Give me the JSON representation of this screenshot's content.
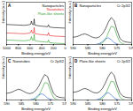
{
  "chart_data": [
    {
      "type": "line",
      "title": "A",
      "x_label": "Binding energy/eV",
      "y_label": "Intensity (a.u.)",
      "x": [
        1000,
        900,
        800,
        700,
        620,
        590,
        577,
        560,
        540,
        530,
        520,
        450,
        350,
        300,
        285,
        270,
        200,
        100,
        0
      ],
      "series": [
        {
          "name": "Nanoparticles",
          "color": "#000000",
          "values": [
            7.1,
            7.0,
            6.9,
            6.8,
            7.0,
            7.2,
            8.3,
            7.1,
            7.0,
            9.1,
            6.9,
            6.6,
            6.4,
            6.3,
            7.0,
            6.2,
            6.0,
            5.9,
            5.8
          ]
        },
        {
          "name": "Nanotubes",
          "color": "#e41a1c",
          "values": [
            4.1,
            4.0,
            3.9,
            3.8,
            4.0,
            4.2,
            5.1,
            4.1,
            4.0,
            6.0,
            3.9,
            3.6,
            3.4,
            3.3,
            4.2,
            3.2,
            3.0,
            2.9,
            2.8
          ]
        },
        {
          "name": "Plate-like sheets",
          "color": "#2ca02c",
          "values": [
            1.6,
            1.5,
            1.4,
            1.3,
            1.5,
            1.7,
            2.8,
            1.6,
            1.5,
            3.6,
            1.4,
            1.1,
            0.9,
            0.8,
            1.6,
            0.7,
            0.5,
            0.4,
            0.3
          ]
        }
      ],
      "xlim": [
        1000,
        0
      ],
      "xticks": [
        1000,
        800,
        600,
        400,
        200,
        0
      ],
      "ylim": [
        0,
        15
      ],
      "tick_labels": "x",
      "legend": "top-right"
    },
    {
      "type": "line",
      "title": "B",
      "x_label": "Binding energy/eV",
      "y_label": "Intensity (a.u.)",
      "annotations": [
        "Nanoparticles",
        "Cr 2p3/2"
      ],
      "x": [
        590,
        589,
        588,
        587,
        586,
        585,
        584,
        583,
        582,
        581,
        580,
        579,
        578,
        577,
        576,
        575,
        574,
        573,
        572,
        571,
        570
      ],
      "series": [
        {
          "color": "#000000",
          "values": [
            0.38,
            0.4,
            0.45,
            0.52,
            0.55,
            0.5,
            0.42,
            0.36,
            0.34,
            0.4,
            0.55,
            0.8,
            1.15,
            1.4,
            1.25,
            0.72,
            0.32,
            0.18,
            0.13,
            0.11,
            0.1
          ]
        },
        {
          "color": "#2ca02c",
          "values": [
            0,
            0,
            0,
            0,
            0,
            0,
            0,
            0,
            0,
            0.02,
            0.08,
            0.25,
            0.6,
            0.95,
            0.9,
            0.45,
            0.12,
            0.03,
            0,
            0,
            0
          ]
        },
        {
          "color": "#1f5fd6",
          "values": [
            0,
            0,
            0,
            0,
            0,
            0,
            0,
            0,
            0.01,
            0.05,
            0.15,
            0.3,
            0.35,
            0.25,
            0.1,
            0.03,
            0,
            0,
            0,
            0,
            0
          ]
        }
      ],
      "xlim": [
        590,
        570
      ],
      "xticks": [
        590,
        585,
        580,
        575,
        570
      ],
      "ylim": [
        0,
        2.2
      ],
      "tick_labels": "x"
    },
    {
      "type": "line",
      "title": "C",
      "x_label": "Binding energy/eV",
      "y_label": "Intensity (a.u.)",
      "annotations": [
        "Nanotubes",
        "Cr 2p3/2"
      ],
      "x": [
        590,
        589,
        588,
        587,
        586,
        585,
        584,
        583,
        582,
        581,
        580,
        579,
        578,
        577,
        576,
        575,
        574,
        573,
        572,
        571,
        570
      ],
      "series": [
        {
          "color": "#000000",
          "values": [
            0.35,
            0.37,
            0.42,
            0.5,
            0.56,
            0.52,
            0.43,
            0.36,
            0.33,
            0.38,
            0.5,
            0.72,
            1.05,
            1.32,
            1.22,
            0.75,
            0.35,
            0.2,
            0.14,
            0.12,
            0.11
          ]
        },
        {
          "color": "#2ca02c",
          "values": [
            0,
            0,
            0,
            0,
            0,
            0,
            0,
            0,
            0,
            0.02,
            0.07,
            0.22,
            0.55,
            0.9,
            0.88,
            0.47,
            0.13,
            0.03,
            0,
            0,
            0
          ]
        },
        {
          "color": "#1f5fd6",
          "values": [
            0,
            0,
            0,
            0,
            0,
            0,
            0,
            0,
            0.01,
            0.04,
            0.13,
            0.27,
            0.32,
            0.24,
            0.1,
            0.03,
            0,
            0,
            0,
            0,
            0
          ]
        }
      ],
      "xlim": [
        590,
        570
      ],
      "xticks": [
        590,
        585,
        580,
        575,
        570
      ],
      "ylim": [
        0,
        2.2
      ],
      "tick_labels": "x"
    },
    {
      "type": "line",
      "title": "D",
      "x_label": "Binding energy/eV",
      "y_label": "Intensity (a.u.)",
      "annotations": [
        "Plate-like sheets",
        "Cr 2p3/2"
      ],
      "x": [
        590,
        589,
        588,
        587,
        586,
        585,
        584,
        583,
        582,
        581,
        580,
        579,
        578,
        577,
        576,
        575,
        574,
        573,
        572,
        571,
        570
      ],
      "series": [
        {
          "color": "#000000",
          "values": [
            0.4,
            0.42,
            0.47,
            0.55,
            0.6,
            0.55,
            0.46,
            0.39,
            0.36,
            0.42,
            0.6,
            0.88,
            1.22,
            1.45,
            1.3,
            0.78,
            0.36,
            0.2,
            0.14,
            0.12,
            0.11
          ]
        },
        {
          "color": "#2ca02c",
          "values": [
            0,
            0,
            0,
            0,
            0,
            0,
            0,
            0,
            0,
            0.02,
            0.09,
            0.27,
            0.63,
            0.98,
            0.93,
            0.5,
            0.14,
            0.03,
            0,
            0,
            0
          ]
        },
        {
          "color": "#1f5fd6",
          "values": [
            0,
            0,
            0,
            0,
            0,
            0,
            0,
            0,
            0.01,
            0.06,
            0.17,
            0.33,
            0.38,
            0.27,
            0.11,
            0.03,
            0,
            0,
            0,
            0,
            0
          ]
        }
      ],
      "xlim": [
        590,
        570
      ],
      "xticks": [
        590,
        585,
        580,
        575,
        570
      ],
      "ylim": [
        0,
        2.2
      ],
      "tick_labels": "x"
    }
  ]
}
